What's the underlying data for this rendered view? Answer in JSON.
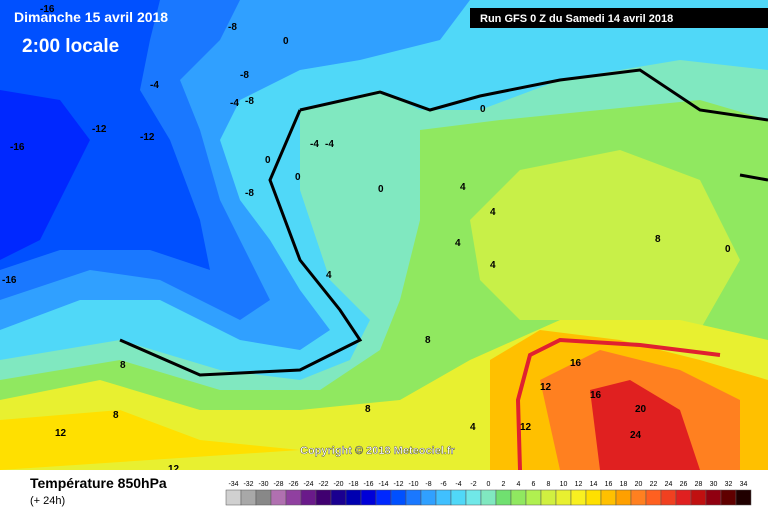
{
  "header": {
    "date": "Dimanche 15 avril 2018",
    "time": "2:00 locale",
    "run": "Run GFS 0 Z du Samedi 14 avril 2018"
  },
  "copyright": "Copyright © 2018 Meteociel.fr",
  "footer": {
    "title": "Température 850hPa",
    "lead": "(+ 24h)"
  },
  "legend": {
    "values": [
      -34,
      -32,
      -30,
      -28,
      -26,
      -24,
      -22,
      -20,
      -18,
      -16,
      -14,
      -12,
      -10,
      -8,
      -6,
      -4,
      -2,
      0,
      2,
      4,
      6,
      8,
      10,
      12,
      14,
      16,
      18,
      20,
      22,
      24,
      26,
      28,
      30,
      32,
      34
    ],
    "colors": [
      "#d0d0d0",
      "#a8a8a8",
      "#888888",
      "#b070b0",
      "#9040a0",
      "#6a1a8a",
      "#400070",
      "#1a0090",
      "#0000b0",
      "#0000d8",
      "#0028ff",
      "#0050ff",
      "#1a78ff",
      "#30a0ff",
      "#40c0ff",
      "#50d8f8",
      "#70e8e8",
      "#80e8c0",
      "#70e070",
      "#90e860",
      "#b0f050",
      "#d0f040",
      "#e8f030",
      "#f8f020",
      "#ffe000",
      "#ffc000",
      "#ffa000",
      "#ff8020",
      "#ff6020",
      "#f04020",
      "#e02020",
      "#c01010",
      "#900010",
      "#600000",
      "#200000"
    ]
  },
  "map_labels": [
    -16,
    -16,
    -12,
    -12,
    -16,
    -8,
    -8,
    -8,
    -4,
    -4,
    -8,
    0,
    0,
    -4,
    -4,
    0,
    0,
    0,
    4,
    4,
    4,
    4,
    4,
    8,
    8,
    8,
    8,
    12,
    12,
    12,
    16,
    16,
    20,
    24,
    12,
    8,
    4,
    0
  ]
}
